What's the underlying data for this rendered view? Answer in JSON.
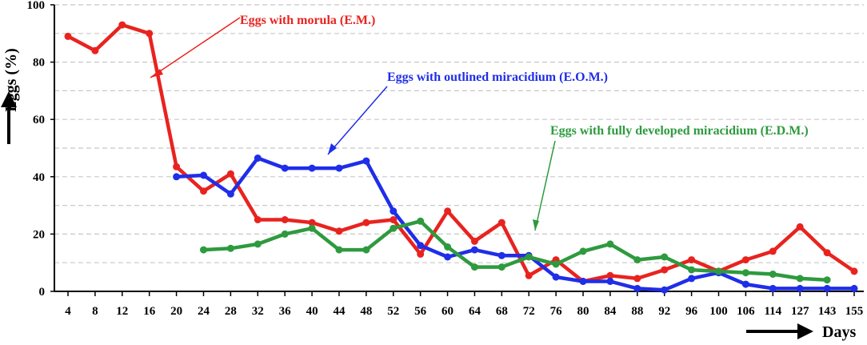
{
  "chart_data": {
    "type": "line",
    "xlabel": "Days",
    "ylabel": "Eggs (%)",
    "categories": [
      "4",
      "8",
      "12",
      "16",
      "20",
      "24",
      "28",
      "32",
      "36",
      "40",
      "44",
      "48",
      "52",
      "56",
      "60",
      "64",
      "68",
      "72",
      "76",
      "80",
      "84",
      "88",
      "92",
      "96",
      "100",
      "106",
      "114",
      "127",
      "143",
      "155"
    ],
    "ylim": [
      0,
      100
    ],
    "yticks": [
      "0",
      "20",
      "40",
      "60",
      "80",
      "100"
    ],
    "grid": true,
    "series": [
      {
        "name": "Eggs with morula (E.M.)",
        "color": "#e8231f",
        "values": [
          89,
          84,
          93,
          90,
          43.5,
          35,
          41,
          25,
          25,
          24,
          21,
          24,
          25,
          13,
          28,
          17.5,
          24,
          5.5,
          11,
          3.5,
          5.5,
          4.5,
          7.5,
          11,
          7,
          11,
          14,
          22.5,
          13.5,
          7
        ]
      },
      {
        "name": "Eggs with outlined miracidium (E.O.M.)",
        "color": "#1f2ee8",
        "values": [
          null,
          null,
          null,
          null,
          40,
          40.5,
          34,
          46.5,
          43,
          43,
          43,
          45.5,
          28,
          16,
          12,
          14.5,
          12.5,
          12.5,
          5,
          3.5,
          3.5,
          1,
          0.5,
          4.5,
          6.5,
          2.5,
          1,
          1,
          1,
          1
        ]
      },
      {
        "name": "Eggs with fully developed miracidium (E.D.M.)",
        "color": "#2e9a3e",
        "values": [
          null,
          null,
          null,
          null,
          null,
          14.5,
          15,
          16.5,
          20,
          22,
          14.5,
          14.5,
          22,
          24.5,
          15.5,
          8.5,
          8.5,
          12,
          9.5,
          14,
          16.5,
          11,
          12,
          7.5,
          7,
          6.5,
          6,
          4.5,
          4,
          null
        ]
      }
    ],
    "annotations": [
      "Eggs with morula (E.M.)",
      "Eggs with outlined miracidium (E.O.M.)",
      "Eggs with fully developed miracidium (E.D.M.)"
    ]
  }
}
